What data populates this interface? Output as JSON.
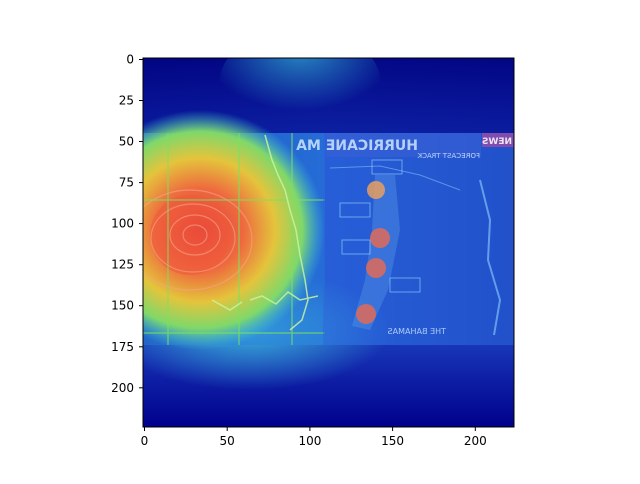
{
  "figure": {
    "x_ticks": [
      "0",
      "50",
      "100",
      "150",
      "200"
    ],
    "y_ticks": [
      "0",
      "25",
      "50",
      "75",
      "100",
      "125",
      "150",
      "175",
      "200"
    ]
  },
  "image_overlay": {
    "description_icon": "heatmap-overlay",
    "news_banner_text": "HURRICANE MA",
    "news_sub_text": "FORECAST TRACK",
    "news_logo": "NEWS",
    "bahamas_label": "THE BAHAMAS",
    "colors": {
      "jet_dark_blue": "#00008b",
      "jet_blue": "#1e3fd0",
      "jet_cyan": "#34c3e8",
      "jet_yellow": "#e0e840",
      "jet_red": "#e2463b",
      "satellite_grid": "#7ee060"
    }
  }
}
